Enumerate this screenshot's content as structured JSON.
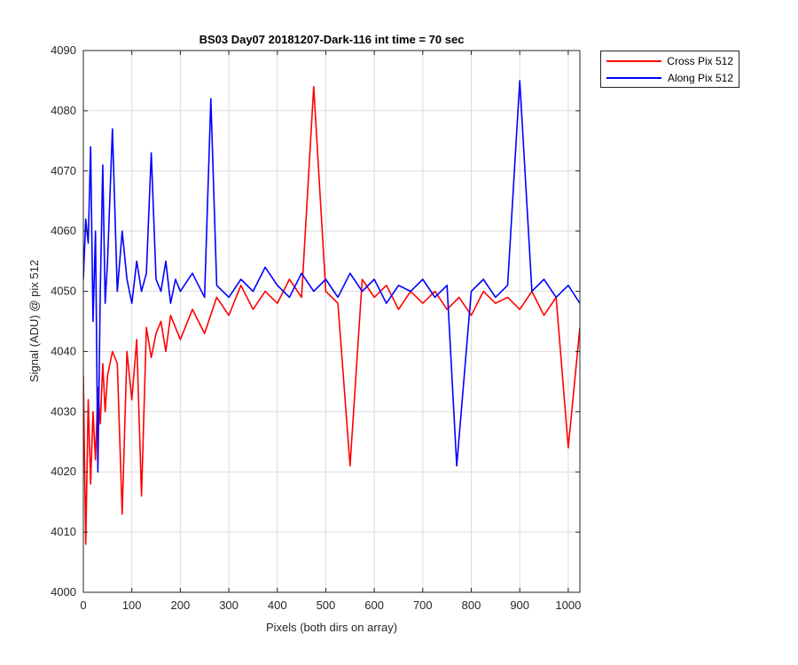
{
  "chart_data": {
    "type": "line",
    "title": "BS03 Day07 20181207-Dark-116 int time = 70 sec",
    "xlabel": "Pixels (both dirs on array)",
    "ylabel": "Signal (ADU) @ pix 512",
    "xlim": [
      0,
      1024
    ],
    "ylim": [
      4000,
      4090
    ],
    "xticks": [
      0,
      100,
      200,
      300,
      400,
      500,
      600,
      700,
      800,
      900,
      1000
    ],
    "yticks": [
      4000,
      4010,
      4020,
      4030,
      4040,
      4050,
      4060,
      4070,
      4080,
      4090
    ],
    "grid": true,
    "legend_position": "outside top-right",
    "series": [
      {
        "name": "Cross Pix 512",
        "color": "#ff0000",
        "x": [
          0,
          5,
          10,
          15,
          20,
          25,
          30,
          35,
          40,
          45,
          50,
          60,
          70,
          80,
          90,
          100,
          110,
          120,
          130,
          140,
          150,
          160,
          170,
          180,
          190,
          200,
          225,
          250,
          275,
          300,
          325,
          350,
          375,
          400,
          425,
          450,
          475,
          500,
          525,
          550,
          575,
          600,
          625,
          650,
          675,
          700,
          725,
          750,
          775,
          800,
          825,
          850,
          875,
          900,
          925,
          950,
          975,
          1000,
          1024
        ],
        "y": [
          4036,
          4008,
          4032,
          4018,
          4030,
          4022,
          4034,
          4028,
          4038,
          4030,
          4036,
          4040,
          4038,
          4013,
          4040,
          4032,
          4042,
          4016,
          4044,
          4039,
          4043,
          4045,
          4040,
          4046,
          4044,
          4042,
          4047,
          4043,
          4049,
          4046,
          4051,
          4047,
          4050,
          4048,
          4052,
          4049,
          4084,
          4050,
          4048,
          4021,
          4052,
          4049,
          4051,
          4047,
          4050,
          4048,
          4050,
          4047,
          4049,
          4046,
          4050,
          4048,
          4049,
          4047,
          4050,
          4046,
          4049,
          4024,
          4044
        ]
      },
      {
        "name": "Along Pix 512",
        "color": "#0000ff",
        "x": [
          0,
          5,
          10,
          15,
          20,
          25,
          30,
          35,
          40,
          45,
          50,
          60,
          70,
          80,
          90,
          100,
          110,
          120,
          130,
          140,
          150,
          160,
          170,
          180,
          190,
          200,
          225,
          250,
          263,
          275,
          300,
          325,
          350,
          375,
          400,
          425,
          450,
          475,
          500,
          525,
          550,
          575,
          600,
          625,
          650,
          675,
          700,
          725,
          750,
          770,
          800,
          825,
          850,
          875,
          900,
          925,
          950,
          975,
          1000,
          1024
        ],
        "y": [
          4052,
          4062,
          4058,
          4074,
          4045,
          4060,
          4020,
          4050,
          4071,
          4048,
          4055,
          4077,
          4050,
          4060,
          4052,
          4048,
          4055,
          4050,
          4053,
          4073,
          4052,
          4050,
          4055,
          4048,
          4052,
          4050,
          4053,
          4049,
          4082,
          4051,
          4049,
          4052,
          4050,
          4054,
          4051,
          4049,
          4053,
          4050,
          4052,
          4049,
          4053,
          4050,
          4052,
          4048,
          4051,
          4050,
          4052,
          4049,
          4051,
          4021,
          4050,
          4052,
          4049,
          4051,
          4085,
          4050,
          4052,
          4049,
          4051,
          4048
        ]
      }
    ]
  }
}
